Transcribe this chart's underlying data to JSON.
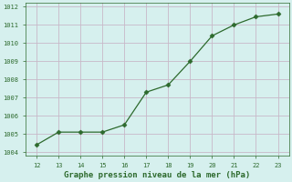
{
  "x": [
    12,
    13,
    14,
    15,
    16,
    17,
    18,
    19,
    20,
    21,
    22,
    23
  ],
  "y": [
    1004.4,
    1005.1,
    1005.1,
    1005.1,
    1005.5,
    1007.3,
    1007.7,
    1009.0,
    1010.4,
    1011.0,
    1011.45,
    1011.6
  ],
  "xlim": [
    11.5,
    23.5
  ],
  "ylim": [
    1003.8,
    1012.2
  ],
  "xticks": [
    12,
    13,
    14,
    15,
    16,
    17,
    18,
    19,
    20,
    21,
    22,
    23
  ],
  "yticks": [
    1004,
    1005,
    1006,
    1007,
    1008,
    1009,
    1010,
    1011,
    1012
  ],
  "line_color": "#2d6a2d",
  "marker_color": "#2d6a2d",
  "bg_color": "#d6f0ee",
  "grid_color": "#c8b8c8",
  "tick_color": "#2d6a2d",
  "xlabel": "Graphe pression niveau de la mer (hPa)",
  "xlabel_color": "#2d6a2d",
  "xlabel_fontsize": 6.5
}
